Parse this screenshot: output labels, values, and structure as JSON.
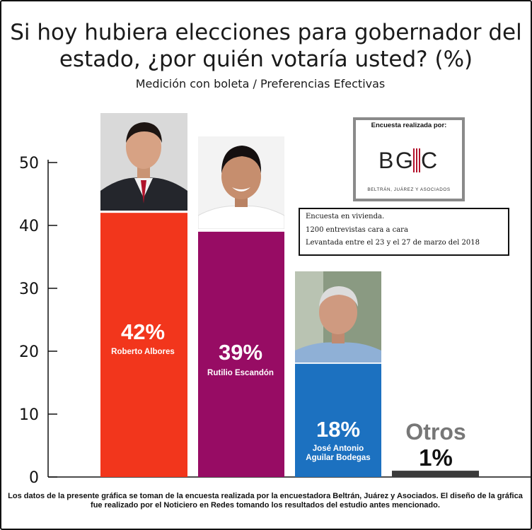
{
  "title_line1": "Si hoy hubiera elecciones para gobernador del",
  "title_line2": "estado, ¿por quién votaría usted? (%)",
  "subtitle": "Medición con boleta / Preferencias Efectivas",
  "pollster_box": {
    "caption": "Encuesta realizada por:",
    "logo_text": "BGC",
    "subtitle": "BELTRÁN, JUÁREZ Y ASOCIADOS"
  },
  "method_box": {
    "line1": "Encuesta en vivienda.",
    "line2": "1200 entrevistas cara a cara",
    "line3": "Levantada entre el 23 y el 27 de marzo del 2018"
  },
  "footer": "Los datos de la presente gráfica se toman de la encuesta realizada por la encuestadora Beltrán, Juárez y Asociados. El diseño de la gráfica fue realizado por el Noticiero en Redes tomando los resultados del estudio antes mencionado.",
  "colors": {
    "albores": "#f2361c",
    "escandon": "#970c64",
    "aguilar": "#1c71c0",
    "otros": "#3b3b3b"
  },
  "chart_data": {
    "type": "bar",
    "categories": [
      "Roberto Albores",
      "Rutilio Escandón",
      "José Antonio Aguilar Bodegas",
      "Otros"
    ],
    "values": [
      42,
      39,
      18,
      1
    ],
    "value_labels": [
      "42%",
      "39%",
      "18%",
      "1%"
    ],
    "yticks": [
      "0",
      "10",
      "20",
      "30",
      "40",
      "50"
    ],
    "ylim": [
      0,
      50
    ]
  }
}
